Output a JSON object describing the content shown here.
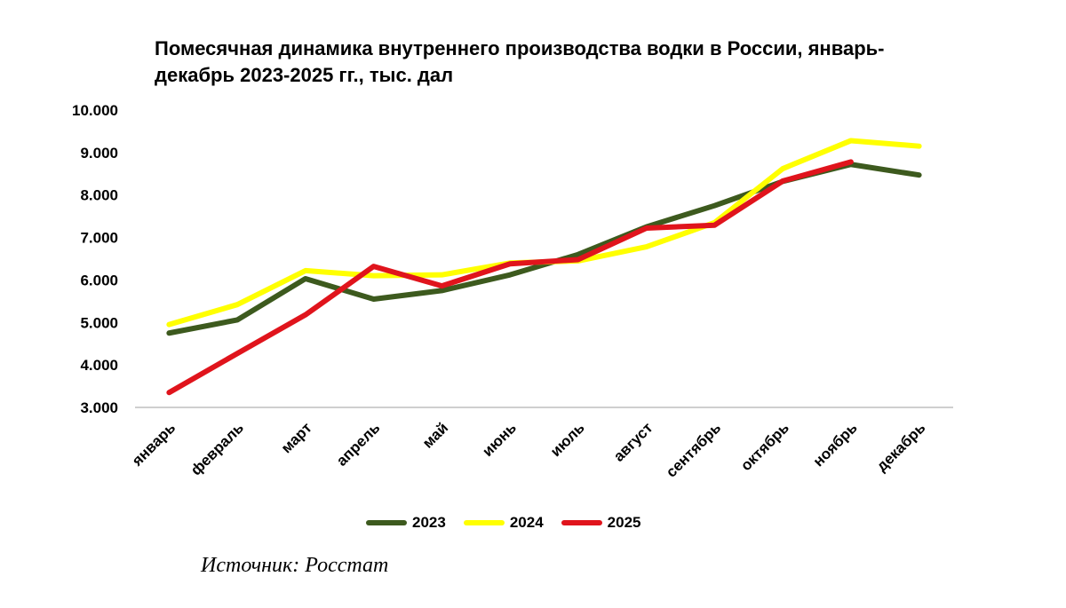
{
  "chart_data": {
    "type": "line",
    "title_lines": [
      "Помесячная динамика внутреннего производства водки в России, январь-",
      "декабрь 2023-2025 гг., тыс. дал"
    ],
    "categories": [
      "январь",
      "февраль",
      "март",
      "апрель",
      "май",
      "июнь",
      "июль",
      "август",
      "сентябрь",
      "октябрь",
      "ноябрь",
      "декабрь"
    ],
    "ylim": [
      3000,
      10000
    ],
    "yticks": [
      3000,
      4000,
      5000,
      6000,
      7000,
      8000,
      9000,
      10000
    ],
    "ytick_labels": [
      "3.000",
      "4.000",
      "5.000",
      "6.000",
      "7.000",
      "8.000",
      "9.000",
      "10.000"
    ],
    "series": [
      {
        "name": "2023",
        "color": "#3d5a1e",
        "values": [
          4750,
          5060,
          6030,
          5550,
          5750,
          6120,
          6600,
          7250,
          7750,
          8320,
          8720,
          8470
        ]
      },
      {
        "name": "2024",
        "color": "#ffff00",
        "values": [
          4950,
          5420,
          6220,
          6100,
          6120,
          6400,
          6450,
          6780,
          7350,
          8620,
          9280,
          9150
        ]
      },
      {
        "name": "2025",
        "color": "#e0141c",
        "values": [
          3350,
          4270,
          5180,
          6320,
          5860,
          6380,
          6480,
          7220,
          7290,
          8330,
          8780,
          null
        ]
      }
    ],
    "legend_position": "bottom"
  },
  "source": "Источник: Росстат"
}
